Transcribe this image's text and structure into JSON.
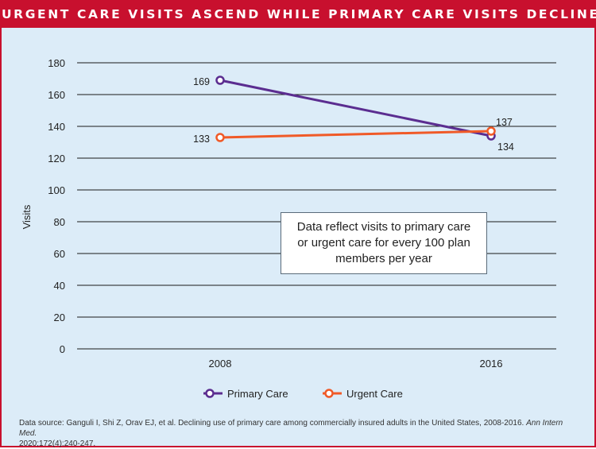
{
  "banner_title": "URGENT CARE VISITS ASCEND WHILE PRIMARY CARE VISITS DECLINE",
  "note": [
    "Data reflect visits to primary care",
    "or urgent care for every 100 plan",
    "members per year"
  ],
  "source": {
    "text": "Data source: Ganguli I, Shi Z, Orav EJ, et al. Declining use of primary care among commercially insured adults in the United States, 2008-2016. ",
    "journal": "Ann Intern Med.",
    "citation": "2020;172(4):240-247."
  },
  "chart_data": {
    "type": "line",
    "x": [
      "2008",
      "2016"
    ],
    "ylabel": "Visits",
    "ylim": [
      0,
      180
    ],
    "yticks": [
      0,
      20,
      40,
      60,
      80,
      100,
      120,
      140,
      160,
      180
    ],
    "grid": true,
    "legend_position": "bottom",
    "series": [
      {
        "name": "Primary Care",
        "values": [
          169,
          134
        ],
        "labels": [
          "169",
          "134"
        ],
        "color": "#5b2d90"
      },
      {
        "name": "Urgent Care",
        "values": [
          133,
          137
        ],
        "labels": [
          "133",
          "137"
        ],
        "color": "#f05a28"
      }
    ]
  }
}
